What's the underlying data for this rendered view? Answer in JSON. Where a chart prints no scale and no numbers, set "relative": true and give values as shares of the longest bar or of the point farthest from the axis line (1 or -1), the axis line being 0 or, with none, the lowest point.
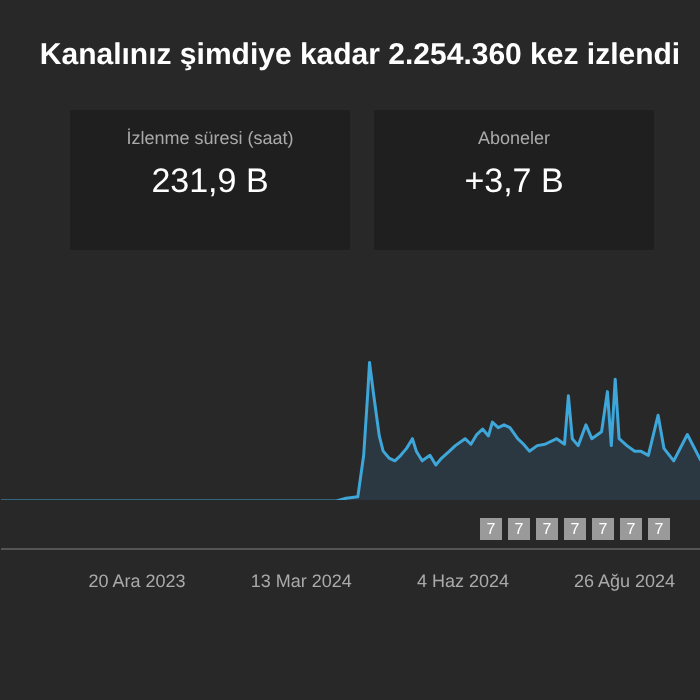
{
  "chart_data": [
    {
      "type": "other",
      "title": "Kanalınız şimdiye kadar 2.254.360 kez izlendi",
      "annotations": [
        "İzlenme süresi (saat)",
        "231,9 B",
        "Aboneler",
        "+3,7 B"
      ]
    },
    {
      "type": "area",
      "relative": true,
      "annotations": [
        "7",
        "7",
        "7",
        "7",
        "7",
        "7",
        "7"
      ],
      "xlim": [
        "2023-10-11",
        "2024-10-04"
      ],
      "xticks": [
        {
          "value": "2023-12-20",
          "label": "20 Ara 2023"
        },
        {
          "value": "2024-03-13",
          "label": "13 Mar 2024"
        },
        {
          "value": "2024-06-04",
          "label": "4 Haz 2024"
        },
        {
          "value": "2024-08-26",
          "label": "26 Ağu 2024"
        }
      ],
      "x": [
        "2023-10-11",
        "2024-03-31",
        "2024-04-05",
        "2024-04-11",
        "2024-04-14",
        "2024-04-16",
        "2024-04-17",
        "2024-04-19",
        "2024-04-22",
        "2024-04-24",
        "2024-04-27",
        "2024-04-30",
        "2024-05-03",
        "2024-05-06",
        "2024-05-09",
        "2024-05-11",
        "2024-05-14",
        "2024-05-18",
        "2024-05-21",
        "2024-05-24",
        "2024-05-28",
        "2024-05-31",
        "2024-06-05",
        "2024-06-08",
        "2024-06-11",
        "2024-06-14",
        "2024-06-17",
        "2024-06-19",
        "2024-06-22",
        "2024-06-25",
        "2024-06-28",
        "2024-07-02",
        "2024-07-05",
        "2024-07-08",
        "2024-07-12",
        "2024-07-16",
        "2024-07-22",
        "2024-07-26",
        "2024-07-28",
        "2024-07-30",
        "2024-08-02",
        "2024-08-06",
        "2024-08-09",
        "2024-08-14",
        "2024-08-17",
        "2024-08-19",
        "2024-08-21",
        "2024-08-23",
        "2024-08-27",
        "2024-08-31",
        "2024-09-03",
        "2024-09-07",
        "2024-09-12",
        "2024-09-15",
        "2024-09-20",
        "2024-09-27",
        "2024-10-04"
      ],
      "series": [
        {
          "color": "#3ea6d8",
          "values": [
            0,
            0,
            0.02,
            0.03,
            0.33,
            0.76,
            1,
            0.78,
            0.47,
            0.36,
            0.31,
            0.29,
            0.33,
            0.38,
            0.45,
            0.36,
            0.29,
            0.33,
            0.26,
            0.31,
            0.36,
            0.4,
            0.45,
            0.41,
            0.48,
            0.52,
            0.47,
            0.57,
            0.53,
            0.55,
            0.53,
            0.45,
            0.41,
            0.36,
            0.4,
            0.41,
            0.45,
            0.41,
            0.76,
            0.45,
            0.4,
            0.55,
            0.45,
            0.5,
            0.79,
            0.4,
            0.88,
            0.45,
            0.4,
            0.36,
            0.36,
            0.33,
            0.62,
            0.38,
            0.29,
            0.48,
            0.29
          ]
        }
      ]
    }
  ]
}
